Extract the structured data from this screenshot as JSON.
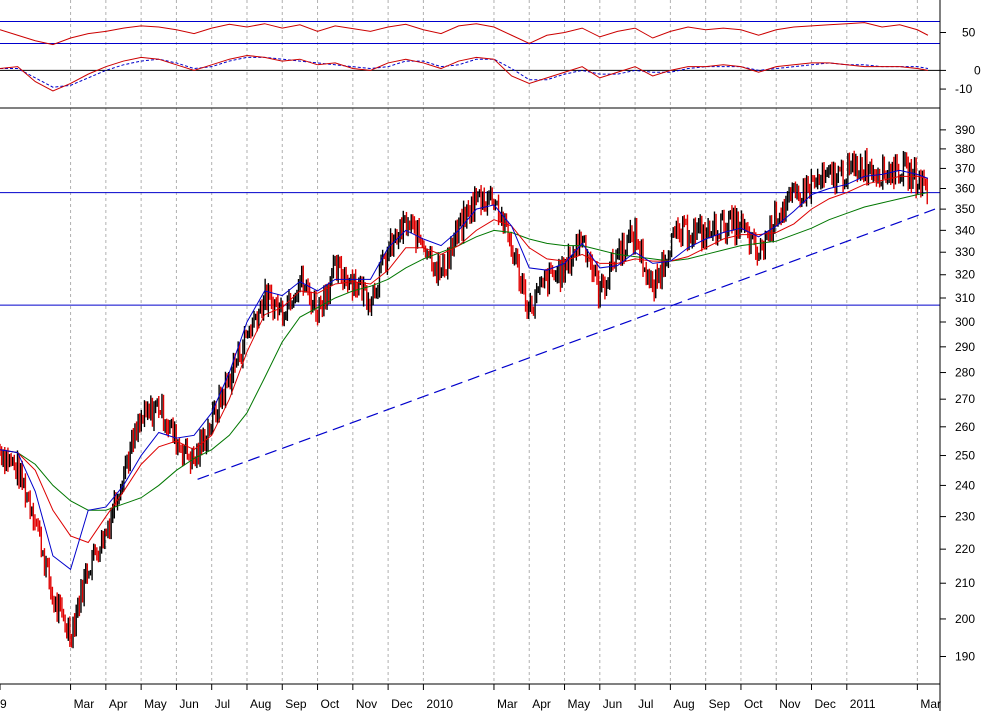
{
  "chart_data": {
    "type": "line",
    "title": "",
    "colors": {
      "price_up": "#000000",
      "price_down": "#e00000",
      "ma_short": "#0000cc",
      "ma_medium": "#dd0000",
      "ma_long": "#007700",
      "support_lines": "#0000cc",
      "trendline": "#0000cc",
      "oscillator": "#cc0000",
      "grid": "#b0b0b0"
    },
    "x_labels": [
      "9",
      "Mar",
      "Apr",
      "May",
      "Jun",
      "Jul",
      "Aug",
      "Sep",
      "Oct",
      "Nov",
      "Dec",
      "2010",
      "Mar",
      "Apr",
      "May",
      "Jun",
      "Jul",
      "Aug",
      "Sep",
      "Oct",
      "Nov",
      "Dec",
      "2011",
      "Mar"
    ],
    "x_index": [
      0,
      2,
      3,
      4,
      5,
      6,
      7,
      8,
      9,
      10,
      11,
      12,
      14,
      15,
      16,
      17,
      18,
      19,
      20,
      21,
      22,
      23,
      24,
      26
    ],
    "x_range": [
      0,
      26.5
    ],
    "price_panel": {
      "y_scale": "log",
      "ylim": [
        183,
        398
      ],
      "ticks": [
        190,
        200,
        210,
        220,
        230,
        240,
        250,
        260,
        270,
        280,
        290,
        300,
        310,
        320,
        330,
        340,
        350,
        360,
        370,
        380,
        390
      ],
      "horizontal_lines": [
        358,
        307
      ],
      "trendline": [
        [
          5.6,
          242
        ],
        [
          26.5,
          350
        ]
      ],
      "series": [
        {
          "key": "price",
          "x": [
            0,
            0.5,
            1,
            1.5,
            2,
            2.5,
            3,
            3.5,
            4,
            4.5,
            5,
            5.5,
            6,
            6.5,
            7,
            7.5,
            8,
            8.5,
            9,
            9.5,
            10,
            10.5,
            11,
            11.5,
            12,
            12.5,
            13,
            13.5,
            14,
            14.5,
            15,
            15.5,
            16,
            16.5,
            17,
            17.5,
            18,
            18.5,
            19,
            19.5,
            20,
            20.5,
            21,
            21.5,
            22,
            22.5,
            23,
            23.5,
            24,
            24.5,
            25,
            25.5,
            26,
            26.3
          ],
          "values": [
            252,
            245,
            230,
            205,
            196,
            215,
            225,
            245,
            262,
            268,
            255,
            248,
            262,
            278,
            295,
            310,
            305,
            318,
            305,
            322,
            318,
            310,
            330,
            343,
            335,
            320,
            340,
            355,
            356,
            332,
            305,
            318,
            322,
            338,
            312,
            330,
            338,
            312,
            335,
            340,
            338,
            343,
            342,
            328,
            348,
            355,
            362,
            365,
            368,
            372,
            368,
            370,
            365,
            360
          ]
        },
        {
          "key": "ma_short",
          "x": [
            0,
            0.5,
            1,
            1.5,
            2,
            2.5,
            3,
            3.5,
            4,
            4.5,
            5,
            5.5,
            6,
            6.5,
            7,
            7.5,
            8,
            8.5,
            9,
            9.5,
            10,
            10.5,
            11,
            11.5,
            12,
            12.5,
            13,
            13.5,
            14,
            14.5,
            15,
            15.5,
            16,
            16.5,
            17,
            17.5,
            18,
            18.5,
            19,
            19.5,
            20,
            20.5,
            21,
            21.5,
            22,
            22.5,
            23,
            23.5,
            24,
            24.5,
            25,
            25.5,
            26,
            26.3
          ],
          "values": [
            252,
            251,
            238,
            218,
            214,
            232,
            233,
            240,
            250,
            258,
            256,
            257,
            265,
            280,
            300,
            313,
            311,
            317,
            313,
            318,
            318,
            318,
            332,
            340,
            336,
            333,
            340,
            350,
            352,
            342,
            323,
            322,
            325,
            334,
            323,
            324,
            330,
            325,
            326,
            332,
            336,
            339,
            341,
            337,
            342,
            349,
            357,
            360,
            362,
            366,
            367,
            369,
            367,
            365
          ]
        },
        {
          "key": "ma_medium",
          "x": [
            0,
            0.5,
            1,
            1.5,
            2,
            2.5,
            3,
            3.5,
            4,
            4.5,
            5,
            5.5,
            6,
            6.5,
            7,
            7.5,
            8,
            8.5,
            9,
            9.5,
            10,
            10.5,
            11,
            11.5,
            12,
            12.5,
            13,
            13.5,
            14,
            14.5,
            15,
            15.5,
            16,
            16.5,
            17,
            17.5,
            18,
            18.5,
            19,
            19.5,
            20,
            20.5,
            21,
            21.5,
            22,
            22.5,
            23,
            23.5,
            24,
            24.5,
            25,
            25.5,
            26,
            26.3
          ],
          "values": [
            252,
            251,
            245,
            232,
            224,
            222,
            230,
            238,
            247,
            253,
            255,
            252,
            257,
            270,
            288,
            303,
            306,
            313,
            312,
            316,
            317,
            316,
            322,
            332,
            332,
            329,
            333,
            340,
            345,
            342,
            332,
            327,
            326,
            329,
            325,
            325,
            327,
            326,
            326,
            328,
            332,
            336,
            338,
            338,
            339,
            343,
            350,
            355,
            358,
            362,
            364,
            366,
            366,
            365
          ]
        },
        {
          "key": "ma_long",
          "x": [
            0,
            0.5,
            1,
            1.5,
            2,
            2.5,
            3,
            3.5,
            4,
            4.5,
            5,
            5.5,
            6,
            6.5,
            7,
            7.5,
            8,
            8.5,
            9,
            9.5,
            10,
            10.5,
            11,
            11.5,
            12,
            12.5,
            13,
            13.5,
            14,
            14.5,
            15,
            15.5,
            16,
            16.5,
            17,
            17.5,
            18,
            18.5,
            19,
            19.5,
            20,
            20.5,
            21,
            21.5,
            22,
            22.5,
            23,
            23.5,
            24,
            24.5,
            25,
            25.5,
            26,
            26.3
          ],
          "values": [
            252,
            251,
            247,
            240,
            235,
            232,
            232,
            234,
            236,
            240,
            245,
            249,
            252,
            257,
            265,
            278,
            292,
            302,
            306,
            310,
            313,
            315,
            318,
            323,
            327,
            330,
            333,
            337,
            340,
            339,
            336,
            334,
            333,
            333,
            331,
            329,
            328,
            327,
            326,
            327,
            329,
            331,
            333,
            334,
            335,
            338,
            341,
            345,
            348,
            351,
            353,
            355,
            357,
            358
          ]
        }
      ]
    },
    "oscillator_panel_1": {
      "ticks": [
        50
      ],
      "ylim": [
        0,
        100
      ],
      "horizontal_lines": [
        70,
        30
      ],
      "x": [
        0,
        0.5,
        1,
        1.5,
        2,
        2.5,
        3,
        3.5,
        4,
        4.5,
        5,
        5.5,
        6,
        6.5,
        7,
        7.5,
        8,
        8.5,
        9,
        9.5,
        10,
        10.5,
        11,
        11.5,
        12,
        12.5,
        13,
        13.5,
        14,
        14.5,
        15,
        15.5,
        16,
        16.5,
        17,
        17.5,
        18,
        18.5,
        19,
        19.5,
        20,
        20.5,
        21,
        21.5,
        22,
        22.5,
        23,
        23.5,
        24,
        24.5,
        25,
        25.5,
        26,
        26.3
      ],
      "values": [
        55,
        45,
        35,
        28,
        40,
        48,
        52,
        58,
        62,
        60,
        55,
        48,
        58,
        65,
        60,
        66,
        58,
        64,
        52,
        62,
        57,
        52,
        60,
        65,
        55,
        48,
        62,
        66,
        60,
        45,
        30,
        45,
        50,
        58,
        42,
        52,
        58,
        40,
        52,
        60,
        55,
        58,
        55,
        45,
        55,
        60,
        62,
        64,
        66,
        68,
        60,
        64,
        55,
        45
      ]
    },
    "oscillator_panel_2": {
      "ticks": [
        0,
        -10
      ],
      "ylim": [
        -18,
        12
      ],
      "horizontal_lines": [
        0
      ],
      "x": [
        0,
        0.5,
        1,
        1.5,
        2,
        2.5,
        3,
        3.5,
        4,
        4.5,
        5,
        5.5,
        6,
        6.5,
        7,
        7.5,
        8,
        8.5,
        9,
        9.5,
        10,
        10.5,
        11,
        11.5,
        12,
        12.5,
        13,
        13.5,
        14,
        14.5,
        15,
        15.5,
        16,
        16.5,
        17,
        17.5,
        18,
        18.5,
        19,
        19.5,
        20,
        20.5,
        21,
        21.5,
        22,
        22.5,
        23,
        23.5,
        24,
        24.5,
        25,
        25.5,
        26,
        26.3
      ],
      "values": [
        1,
        2,
        -6,
        -11,
        -7,
        -2,
        2,
        5,
        7,
        6,
        3,
        0,
        3,
        6,
        8,
        7,
        5,
        6,
        3,
        4,
        1,
        0,
        4,
        6,
        4,
        1,
        5,
        7,
        6,
        -3,
        -7,
        -4,
        -1,
        2,
        -4,
        -1,
        2,
        -3,
        0,
        2,
        2,
        3,
        2,
        -1,
        2,
        3,
        4,
        4,
        3,
        2,
        2,
        2,
        1,
        0
      ],
      "signal": [
        1,
        1,
        -4,
        -9,
        -8,
        -4,
        0,
        3,
        5,
        6,
        4,
        1,
        2,
        5,
        7,
        7,
        6,
        5,
        4,
        3,
        2,
        1,
        2,
        5,
        5,
        2,
        3,
        6,
        6,
        1,
        -5,
        -5,
        -2,
        0,
        -2,
        -2,
        0,
        -1,
        -1,
        1,
        2,
        2,
        2,
        0,
        1,
        2,
        3,
        4,
        3,
        3,
        2,
        2,
        2,
        1
      ]
    }
  }
}
